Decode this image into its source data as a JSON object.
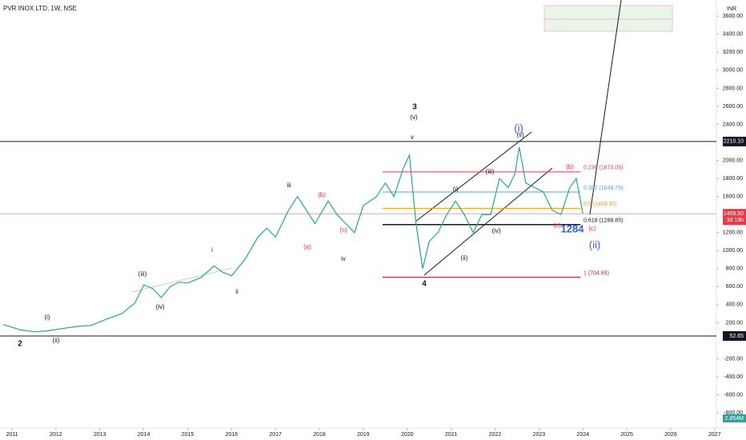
{
  "header": {
    "title": "PVR INOX LTD, 1W, NSE",
    "currency": "INR"
  },
  "chart_data": {
    "type": "line",
    "color": "#26a69a",
    "x": [
      2010.8,
      2011.2,
      2011.5,
      2011.8,
      2012.2,
      2012.5,
      2012.8,
      2013.2,
      2013.5,
      2013.8,
      2014.0,
      2014.2,
      2014.4,
      2014.6,
      2014.8,
      2015.0,
      2015.3,
      2015.6,
      2015.8,
      2016.0,
      2016.3,
      2016.6,
      2016.8,
      2017.0,
      2017.3,
      2017.5,
      2017.7,
      2017.9,
      2018.2,
      2018.4,
      2018.6,
      2018.8,
      2019.0,
      2019.3,
      2019.5,
      2019.7,
      2019.9,
      2020.05,
      2020.2,
      2020.35,
      2020.5,
      2020.7,
      2020.9,
      2021.1,
      2021.3,
      2021.5,
      2021.7,
      2021.9,
      2022.1,
      2022.3,
      2022.45,
      2022.55,
      2022.7,
      2022.9,
      2023.1,
      2023.3,
      2023.5,
      2023.7,
      2023.85,
      2024.0
    ],
    "values": [
      180,
      120,
      100,
      110,
      140,
      160,
      170,
      250,
      300,
      420,
      620,
      580,
      480,
      600,
      650,
      640,
      700,
      830,
      760,
      720,
      900,
      1150,
      1250,
      1150,
      1450,
      1600,
      1450,
      1300,
      1550,
      1400,
      1300,
      1200,
      1500,
      1600,
      1750,
      1600,
      1900,
      2060,
      1300,
      800,
      1100,
      1200,
      1400,
      1550,
      1400,
      1200,
      1400,
      1400,
      1800,
      1700,
      1850,
      2150,
      1750,
      1700,
      1650,
      1450,
      1400,
      1700,
      1800,
      1409.5
    ],
    "xlim": [
      2010.727,
      2027.04
    ],
    "xticks": [
      2011,
      2012,
      2013,
      2014,
      2015,
      2016,
      2017,
      2018,
      2019,
      2020,
      2021,
      2022,
      2023,
      2024,
      2025,
      2026,
      2027
    ],
    "ylim": [
      -950,
      3780
    ],
    "yticks": [
      {
        "value": 3600,
        "label": "3600.00"
      },
      {
        "value": 3400,
        "label": "3400.00"
      },
      {
        "value": 3200,
        "label": "3200.00"
      },
      {
        "value": 3000,
        "label": "3000.00"
      },
      {
        "value": 2800,
        "label": "2800.00"
      },
      {
        "value": 2600,
        "label": "2600.00"
      },
      {
        "value": 2400,
        "label": "2400.00"
      },
      {
        "value": 2000,
        "label": "2000.00"
      },
      {
        "value": 1800,
        "label": "1800.00"
      },
      {
        "value": 1600,
        "label": "1600.00"
      },
      {
        "value": 1200,
        "label": "1200.00"
      },
      {
        "value": 1000,
        "label": "1000.00"
      },
      {
        "value": 800,
        "label": "800.00"
      },
      {
        "value": 600,
        "label": "600.00"
      },
      {
        "value": 400,
        "label": "400.00"
      },
      {
        "value": 200,
        "label": "200.00"
      },
      {
        "value": -200,
        "label": "-200.00"
      },
      {
        "value": -400,
        "label": "-400.00"
      },
      {
        "value": -600,
        "label": "-600.00"
      },
      {
        "value": -800,
        "label": "-800.00"
      }
    ],
    "price_tags": [
      {
        "value": 2210.1,
        "label": "2210.10",
        "color": "#131722"
      },
      {
        "value": 1409.5,
        "label": "1409.50",
        "color": "#f23645"
      },
      {
        "value": 52.65,
        "label": "52.65",
        "color": "#131722"
      }
    ],
    "countdown": "3d 19h",
    "volume_label": "2.854M",
    "fib_levels": [
      {
        "price": 1873.05,
        "label": "0.236 (1873.05)",
        "color": "#f23645"
      },
      {
        "price": 1649.75,
        "label": "0.382 (1649.75)",
        "color": "#5b9cf6"
      },
      {
        "price": 1469.3,
        "label": "0.5 (1469.30)",
        "color": "#ff9800"
      },
      {
        "price": 1288.85,
        "label": "0.618 (1288.85)",
        "color": "#131722"
      },
      {
        "price": 704.65,
        "label": "1 (704.65)",
        "color": "#c2185b"
      }
    ],
    "annotations": [
      {
        "text": "3",
        "color": "#131722"
      },
      {
        "text": "(v)",
        "color": "#131722"
      },
      {
        "text": "v",
        "color": "#131722"
      },
      {
        "text": "(i)",
        "color": "#2962ff"
      },
      {
        "text": "(v)",
        "color": "#131722"
      },
      {
        "text": "(iii)",
        "color": "#131722"
      },
      {
        "text": "(i)",
        "color": "#131722"
      },
      {
        "text": "(b)",
        "color": "#f23645"
      },
      {
        "text": "(iv)",
        "color": "#131722"
      },
      {
        "text": "(ii)",
        "color": "#131722"
      },
      {
        "text": "4",
        "color": "#131722"
      },
      {
        "text": "(a)",
        "color": "#f23645"
      },
      {
        "text": "(c)",
        "color": "#f23645"
      },
      {
        "text": "1284",
        "color": "#2962ff"
      },
      {
        "text": "(ii)",
        "color": "#2962ff"
      },
      {
        "text": "iii",
        "color": "#131722"
      },
      {
        "text": "(b)",
        "color": "#f23645"
      },
      {
        "text": "(a)",
        "color": "#f23645"
      },
      {
        "text": "(c)",
        "color": "#f23645"
      },
      {
        "text": "iv",
        "color": "#131722"
      },
      {
        "text": "i",
        "color": "#131722"
      },
      {
        "text": "ii",
        "color": "#131722"
      },
      {
        "text": "(iii)",
        "color": "#131722"
      },
      {
        "text": "(iv)",
        "color": "#131722"
      },
      {
        "text": "(i)",
        "color": "#131722"
      },
      {
        "text": "(ii)",
        "color": "#131722"
      },
      {
        "text": "2",
        "color": "#131722"
      }
    ]
  }
}
